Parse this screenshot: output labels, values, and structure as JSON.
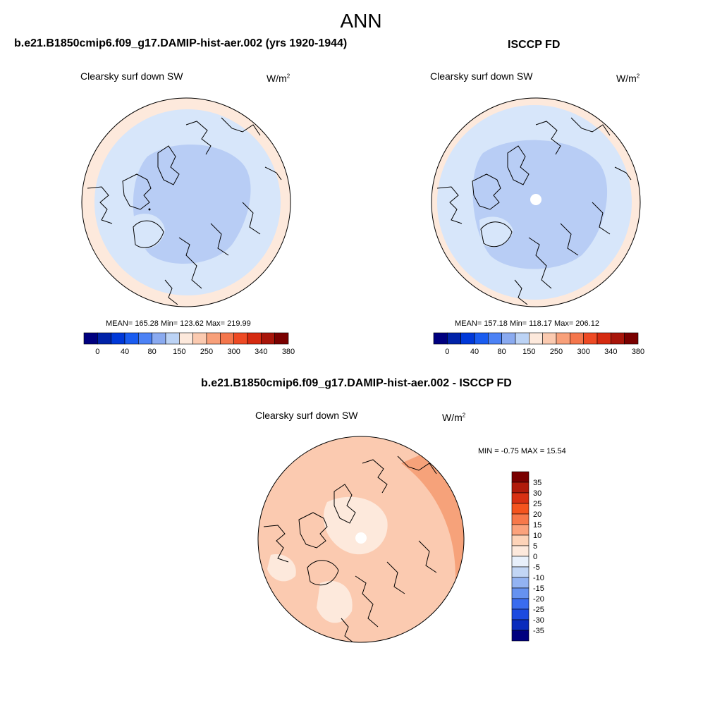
{
  "season": "ANN",
  "panels": [
    {
      "title": "b.e21.B1850cmip6.f09_g17.DAMIP-hist-aer.002 (yrs 1920-1944)",
      "variable": "Clearsky surf down SW",
      "units_base": "W/m",
      "units_exp": "2",
      "stats": "MEAN= 165.28  Min= 123.62  Max= 219.99"
    },
    {
      "title": "ISCCP FD",
      "variable": "Clearsky surf down SW",
      "units_base": "W/m",
      "units_exp": "2",
      "stats": "MEAN= 157.18  Min= 118.17  Max= 206.12"
    },
    {
      "title": "b.e21.B1850cmip6.f09_g17.DAMIP-hist-aer.002 - ISCCP FD",
      "variable": "Clearsky surf down SW",
      "units_base": "W/m",
      "units_exp": "2",
      "stats": "MIN =  -0.75 MAX =  15.54"
    }
  ],
  "abs_colorbar": {
    "colors": [
      "#00007f",
      "#0022a8",
      "#0038d8",
      "#1a5cf0",
      "#4c82f5",
      "#8aaaf0",
      "#bcd3f5",
      "#fde9dc",
      "#fbcab0",
      "#f8a07a",
      "#f4764c",
      "#ee4a24",
      "#d52a10",
      "#a8150a",
      "#7a0000"
    ],
    "labels": [
      "0",
      "40",
      "80",
      "150",
      "250",
      "300",
      "340",
      "380"
    ]
  },
  "diff_colorbar": {
    "colors": [
      "#7a0000",
      "#b01a0a",
      "#d83012",
      "#f4541e",
      "#f7784a",
      "#fba27c",
      "#fdd3b8",
      "#fde9dc",
      "#e8f0fb",
      "#c2d6f5",
      "#93b3f2",
      "#6692f0",
      "#3a6cef",
      "#1c4ae0",
      "#0a2cbc",
      "#00007f"
    ],
    "labels": [
      "35",
      "30",
      "25",
      "20",
      "15",
      "10",
      "5",
      "0",
      "-5",
      "-10",
      "-15",
      "-20",
      "-25",
      "-30",
      "-35"
    ]
  }
}
